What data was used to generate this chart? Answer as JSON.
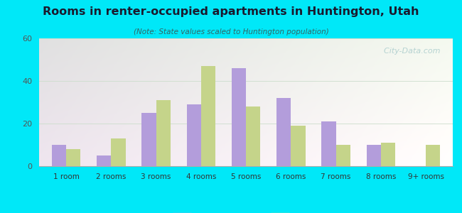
{
  "title": "Rooms in renter-occupied apartments in Huntington, Utah",
  "subtitle": "(Note: State values scaled to Huntington population)",
  "categories": [
    "1 room",
    "2 rooms",
    "3 rooms",
    "4 rooms",
    "5 rooms",
    "6 rooms",
    "7 rooms",
    "8 rooms",
    "9+ rooms"
  ],
  "huntington": [
    10,
    5,
    25,
    29,
    46,
    32,
    21,
    10,
    0
  ],
  "utah": [
    8,
    13,
    31,
    47,
    28,
    19,
    10,
    11,
    10
  ],
  "huntington_color": "#b39ddb",
  "utah_color": "#c5d48a",
  "background_outer": "#00e8f8",
  "ylim": [
    0,
    60
  ],
  "yticks": [
    0,
    20,
    40,
    60
  ],
  "bar_width": 0.32,
  "watermark": "  City-Data.com"
}
